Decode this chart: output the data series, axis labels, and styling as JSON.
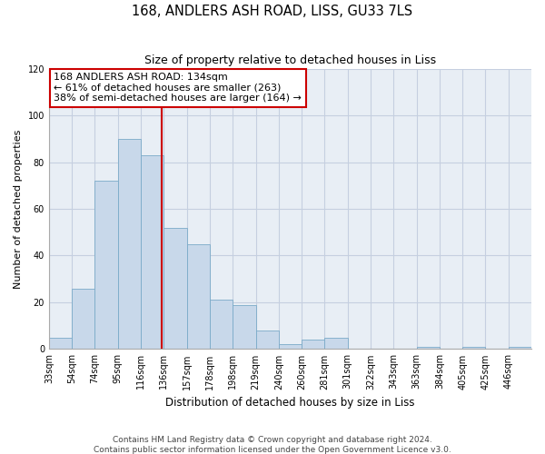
{
  "title": "168, ANDLERS ASH ROAD, LISS, GU33 7LS",
  "subtitle": "Size of property relative to detached houses in Liss",
  "xlabel": "Distribution of detached houses by size in Liss",
  "ylabel": "Number of detached properties",
  "bin_labels": [
    "33sqm",
    "54sqm",
    "74sqm",
    "95sqm",
    "116sqm",
    "136sqm",
    "157sqm",
    "178sqm",
    "198sqm",
    "219sqm",
    "240sqm",
    "260sqm",
    "281sqm",
    "301sqm",
    "322sqm",
    "343sqm",
    "363sqm",
    "384sqm",
    "405sqm",
    "425sqm",
    "446sqm"
  ],
  "bar_values": [
    5,
    26,
    72,
    90,
    83,
    52,
    45,
    21,
    19,
    8,
    2,
    4,
    5,
    0,
    0,
    0,
    1,
    0,
    1,
    0,
    1
  ],
  "bar_color": "#c8d8ea",
  "bar_edge_color": "#7aaac8",
  "property_line_label": "168 ANDLERS ASH ROAD: 134sqm",
  "annotation_line1": "← 61% of detached houses are smaller (263)",
  "annotation_line2": "38% of semi-detached houses are larger (164) →",
  "red_line_color": "#cc0000",
  "annotation_box_edge": "#cc0000",
  "ylim": [
    0,
    120
  ],
  "yticks": [
    0,
    20,
    40,
    60,
    80,
    100,
    120
  ],
  "footer1": "Contains HM Land Registry data © Crown copyright and database right 2024.",
  "footer2": "Contains public sector information licensed under the Open Government Licence v3.0.",
  "background_color": "#ffffff",
  "plot_bg_color": "#e8eef5",
  "grid_color": "#c5cfe0"
}
